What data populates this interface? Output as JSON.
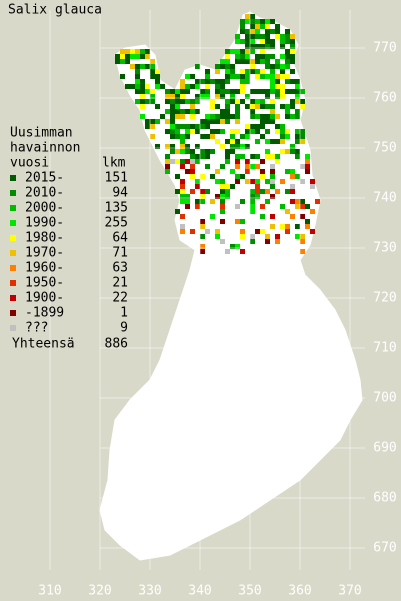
{
  "title": "Salix glauca",
  "legend": {
    "header": [
      "Uusimman",
      "havainnon",
      "vuosi"
    ],
    "count_header": "lkm",
    "rows": [
      {
        "label": "2015-",
        "count": 151,
        "color": "#005a00"
      },
      {
        "label": "2010-",
        "count": 94,
        "color": "#008c00"
      },
      {
        "label": "2000-",
        "count": 135,
        "color": "#00bb00"
      },
      {
        "label": "1990-",
        "count": 255,
        "color": "#00e600"
      },
      {
        "label": "1980-",
        "count": 64,
        "color": "#ffff00"
      },
      {
        "label": "1970-",
        "count": 71,
        "color": "#f0c000"
      },
      {
        "label": "1960-",
        "count": 63,
        "color": "#ff8000"
      },
      {
        "label": "1950-",
        "count": 21,
        "color": "#e03000"
      },
      {
        "label": "1900-",
        "count": 22,
        "color": "#c00000"
      },
      {
        "label": "-1899",
        "count": 1,
        "color": "#800000"
      },
      {
        "label": "???",
        "count": 9,
        "color": "#c0c0c0"
      }
    ],
    "total_label": "Yhteensä",
    "total": 886
  },
  "axes": {
    "xticks": [
      310,
      320,
      330,
      340,
      350,
      360,
      370
    ],
    "yticks": [
      670,
      680,
      690,
      700,
      710,
      720,
      730,
      740,
      750,
      760,
      770
    ]
  }
}
